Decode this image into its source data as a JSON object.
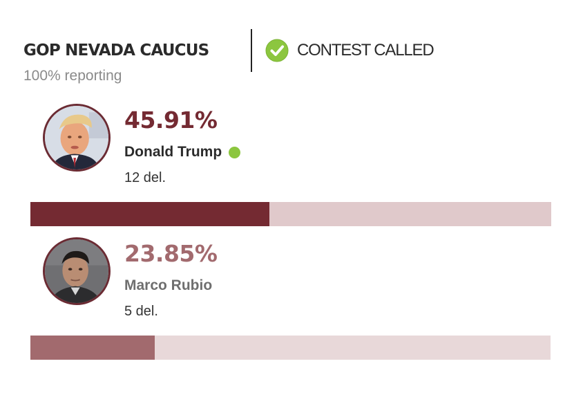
{
  "race": {
    "title": "GOP NEVADA CAUCUS",
    "reporting": "100% reporting",
    "status_label": "CONTEST CALLED"
  },
  "colors": {
    "leader": "#742a32",
    "leader_track": "#e0c9cb",
    "second": "#a26a6e",
    "second_track": "#e8d8d9",
    "winner_dot": "#8cc63f",
    "check": "#8cc63f"
  },
  "candidates": [
    {
      "percent": "45.91%",
      "percent_value": 45.91,
      "name": "Donald Trump",
      "delegates": "12 del.",
      "winner": true,
      "avatar_icon": "candidate-photo"
    },
    {
      "percent": "23.85%",
      "percent_value": 23.85,
      "name": "Marco Rubio",
      "delegates": "5 del.",
      "winner": false,
      "avatar_icon": "candidate-photo"
    }
  ]
}
